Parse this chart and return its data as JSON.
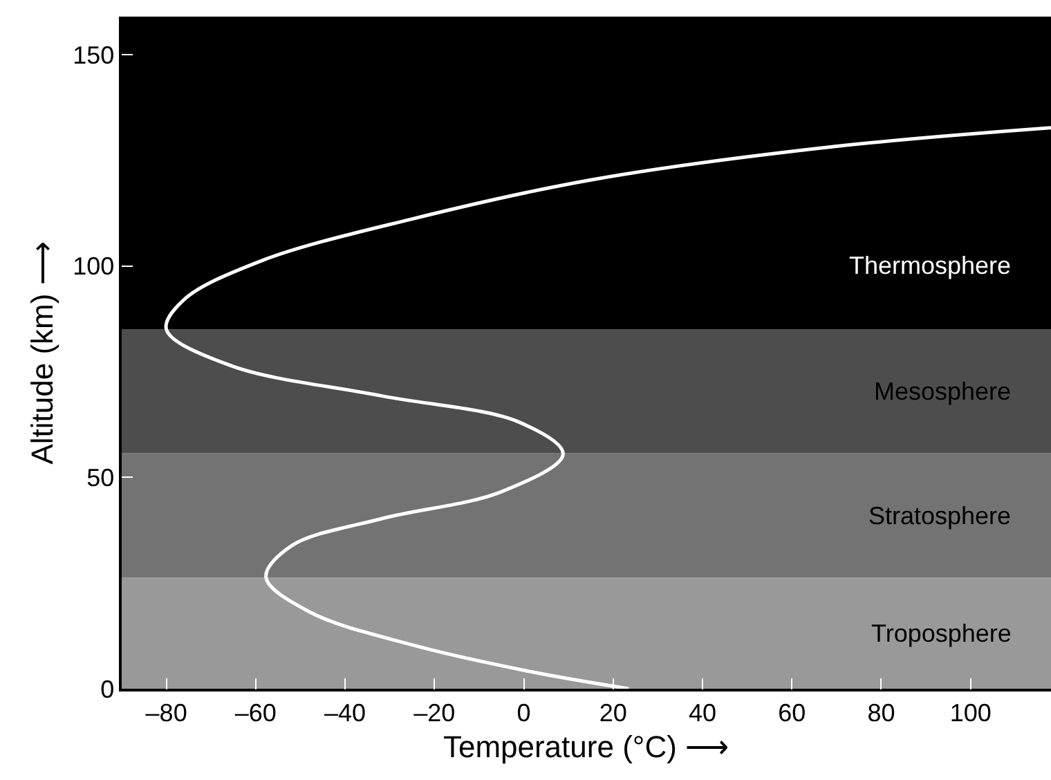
{
  "chart_data": {
    "type": "line",
    "xlabel": "Temperature (°C) ⟶",
    "ylabel": "Altitude (km) ⟶",
    "x": [
      23.5,
      1.7,
      -25.1,
      -48,
      -57.7,
      -52,
      -31.9,
      -5,
      8.8,
      -0.9,
      -31.9,
      -65.5,
      -80,
      -76.2,
      -58.8,
      -25.1,
      15.2,
      69,
      118
    ],
    "series": [
      {
        "color": "#ffffff",
        "values": [
          0,
          4.0,
          10.4,
          18.2,
          26.4,
          33.8,
          40.2,
          46.6,
          55.5,
          63,
          69.3,
          76.4,
          85,
          91.9,
          101.2,
          111.1,
          120.4,
          128.2,
          132.7
        ]
      }
    ],
    "xlim": [
      -90,
      118
    ],
    "ylim": [
      0,
      159
    ],
    "xticks": [
      {
        "value": -80,
        "label": "–80"
      },
      {
        "value": -60,
        "label": "–60"
      },
      {
        "value": -40,
        "label": "–40"
      },
      {
        "value": -20,
        "label": "–20"
      },
      0,
      20,
      40,
      60,
      80,
      100
    ],
    "yticks": [
      0,
      50,
      100,
      150
    ],
    "bands": [
      {
        "axis": "y",
        "from": 0,
        "to": 26.3,
        "label": "Troposphere",
        "color": "#999999"
      },
      {
        "axis": "y",
        "from": 26.3,
        "to": 55.7,
        "label": "Stratosphere",
        "color": "#737373"
      },
      {
        "axis": "y",
        "from": 55.7,
        "to": 85,
        "label": "Mesosphere",
        "color": "#4d4d4d"
      },
      {
        "axis": "y",
        "from": 85,
        "to": 159,
        "label": "Thermosphere",
        "color": "#000000"
      }
    ],
    "marker": "none",
    "line_style": "solid"
  }
}
